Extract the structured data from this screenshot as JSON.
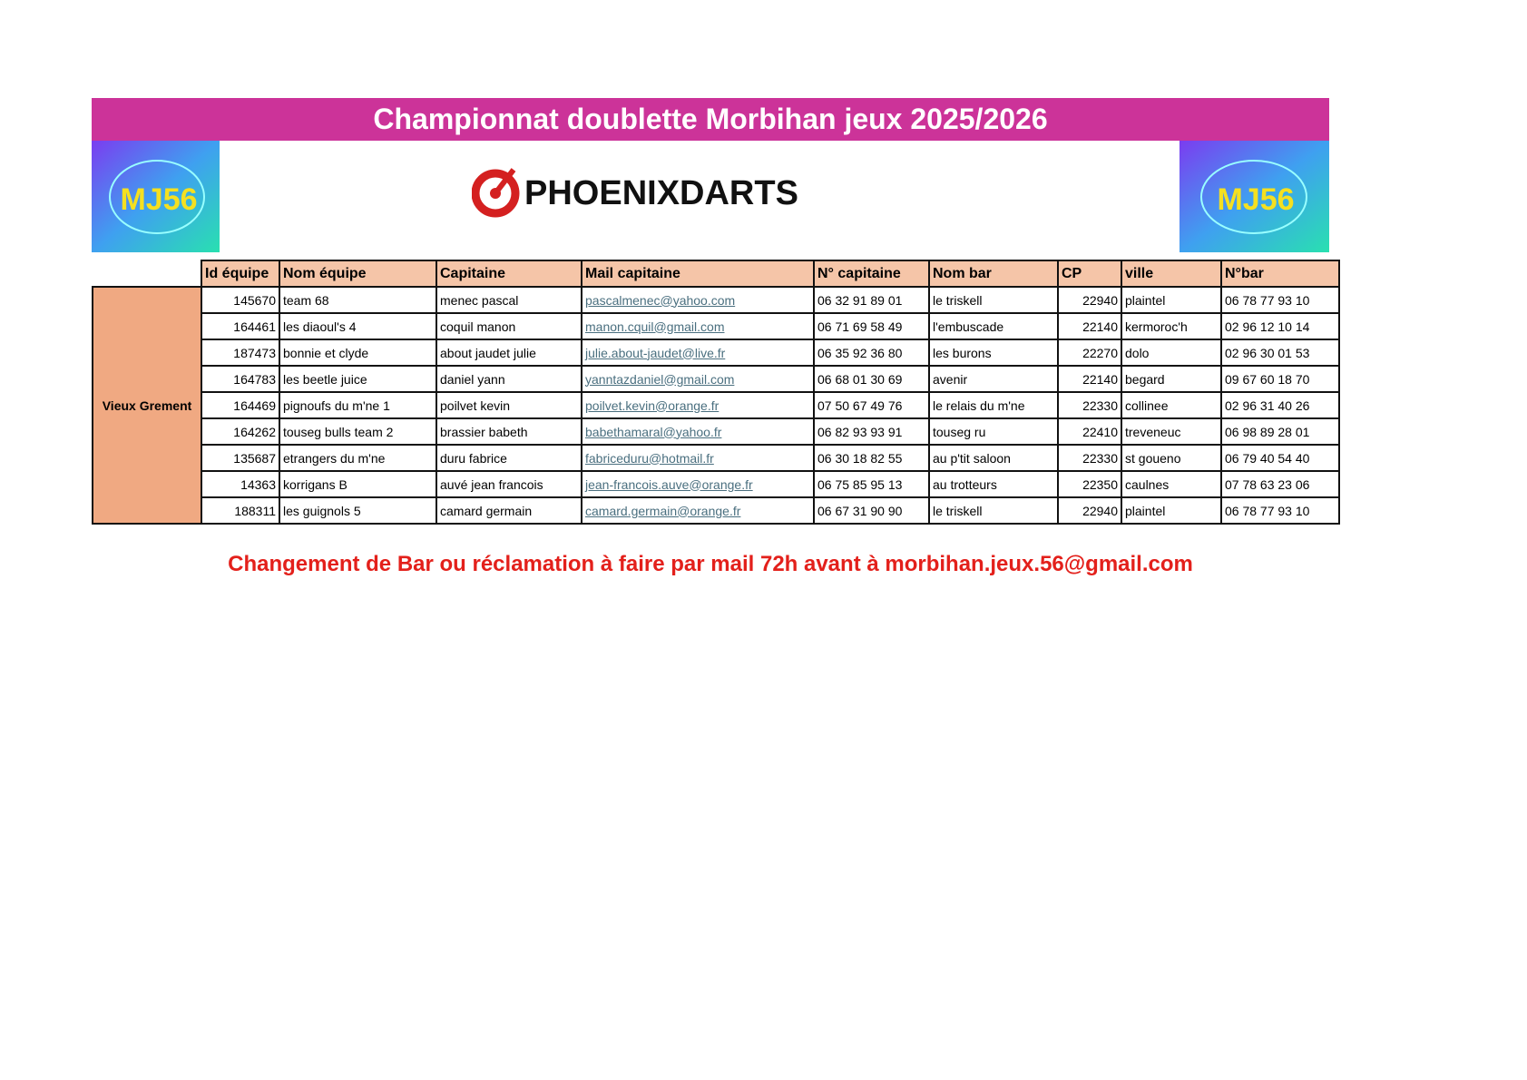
{
  "header": {
    "title": "Championnat doublette Morbihan jeux 2025/2026",
    "logo_left": "MJ56",
    "logo_right": "MJ56",
    "sponsor": "PHOENIXDARTS"
  },
  "table": {
    "columns": [
      "Id équipe",
      "Nom équipe",
      "Capitaine",
      "Mail capitaine",
      "N° capitaine",
      "Nom bar",
      "CP",
      "ville",
      "N°bar"
    ],
    "group": "Vieux Grement",
    "rows": [
      [
        145670,
        "team 68",
        "menec pascal",
        "pascalmenec@yahoo.com",
        "06 32 91 89 01",
        "le triskell",
        22940,
        "plaintel",
        "06 78 77 93 10"
      ],
      [
        164461,
        "les diaoul's 4",
        "coquil manon",
        "manon.cquil@gmail.com",
        "06 71 69 58 49",
        "l'embuscade",
        22140,
        "kermoroc'h",
        "02 96 12 10 14"
      ],
      [
        187473,
        "bonnie et clyde",
        "about jaudet julie",
        "julie.about-jaudet@live.fr",
        "06 35 92 36 80",
        "les burons",
        22270,
        "dolo",
        "02 96 30 01 53"
      ],
      [
        164783,
        "les beetle juice",
        "daniel yann",
        "yanntazdaniel@gmail.com",
        "06 68 01 30 69",
        "avenir",
        22140,
        "begard",
        "09 67 60 18 70"
      ],
      [
        164469,
        "pignoufs du m'ne 1",
        "poilvet kevin",
        "poilvet.kevin@orange.fr",
        "07 50 67 49 76",
        "le relais du m'ne",
        22330,
        "collinee",
        "02 96 31 40 26"
      ],
      [
        164262,
        "touseg bulls team 2",
        "brassier babeth",
        "babethamaral@yahoo.fr",
        "06 82 93 93 91",
        "touseg ru",
        22410,
        "treveneuc",
        "06 98 89 28 01"
      ],
      [
        135687,
        "etrangers du m'ne",
        "duru fabrice",
        "fabriceduru@hotmail.fr",
        "06 30 18 82 55",
        "au p'tit saloon",
        22330,
        "st goueno",
        "06 79 40 54 40"
      ],
      [
        14363,
        "korrigans B",
        "auvé jean francois",
        "jean-francois.auve@orange.fr",
        "06 75 85 95 13",
        "au trotteurs",
        22350,
        "caulnes",
        "07 78 63 23 06"
      ],
      [
        188311,
        "les guignols 5",
        "camard germain",
        "camard.germain@orange.fr",
        "06 67 31 90 90",
        "le triskell",
        22940,
        "plaintel",
        "06 78 77 93 10"
      ]
    ]
  },
  "footer": {
    "notice": "Changement de Bar ou réclamation à faire par mail 72h avant à morbihan.jeux.56@gmail.com"
  }
}
